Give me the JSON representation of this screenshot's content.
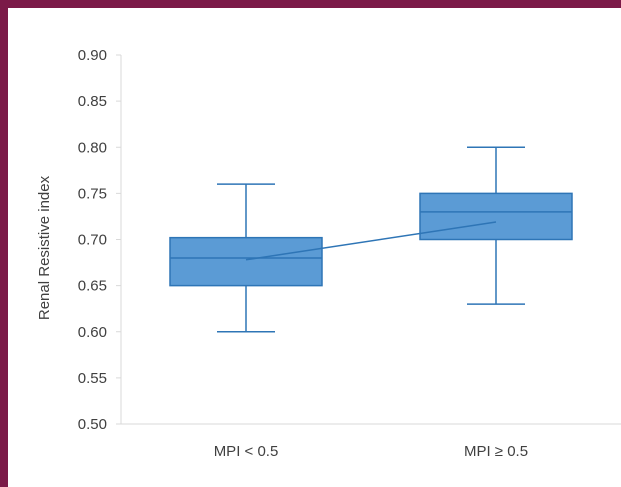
{
  "chart_data": {
    "type": "boxplot",
    "title": "",
    "xlabel": "",
    "ylabel": "Renal Resistive index",
    "ylim": [
      0.5,
      0.9
    ],
    "yticks": [
      "0.90",
      "0.85",
      "0.80",
      "0.75",
      "0.70",
      "0.65",
      "0.60",
      "0.55",
      "0.50"
    ],
    "categories": [
      "MPI < 0.5",
      "MPI ≥ 0.5"
    ],
    "boxes": [
      {
        "category": "MPI < 0.5",
        "min": 0.6,
        "q1": 0.65,
        "median": 0.68,
        "q3": 0.702,
        "max": 0.76,
        "mean": 0.678
      },
      {
        "category": "MPI ≥ 0.5",
        "min": 0.63,
        "q1": 0.7,
        "median": 0.73,
        "q3": 0.75,
        "max": 0.8,
        "mean": 0.719
      }
    ],
    "grid": false,
    "mean_line": true,
    "colors": {
      "box_fill": "#5b9bd5",
      "box_stroke": "#2e75b6",
      "axis": "#d9d9d9",
      "text": "#404040"
    }
  }
}
